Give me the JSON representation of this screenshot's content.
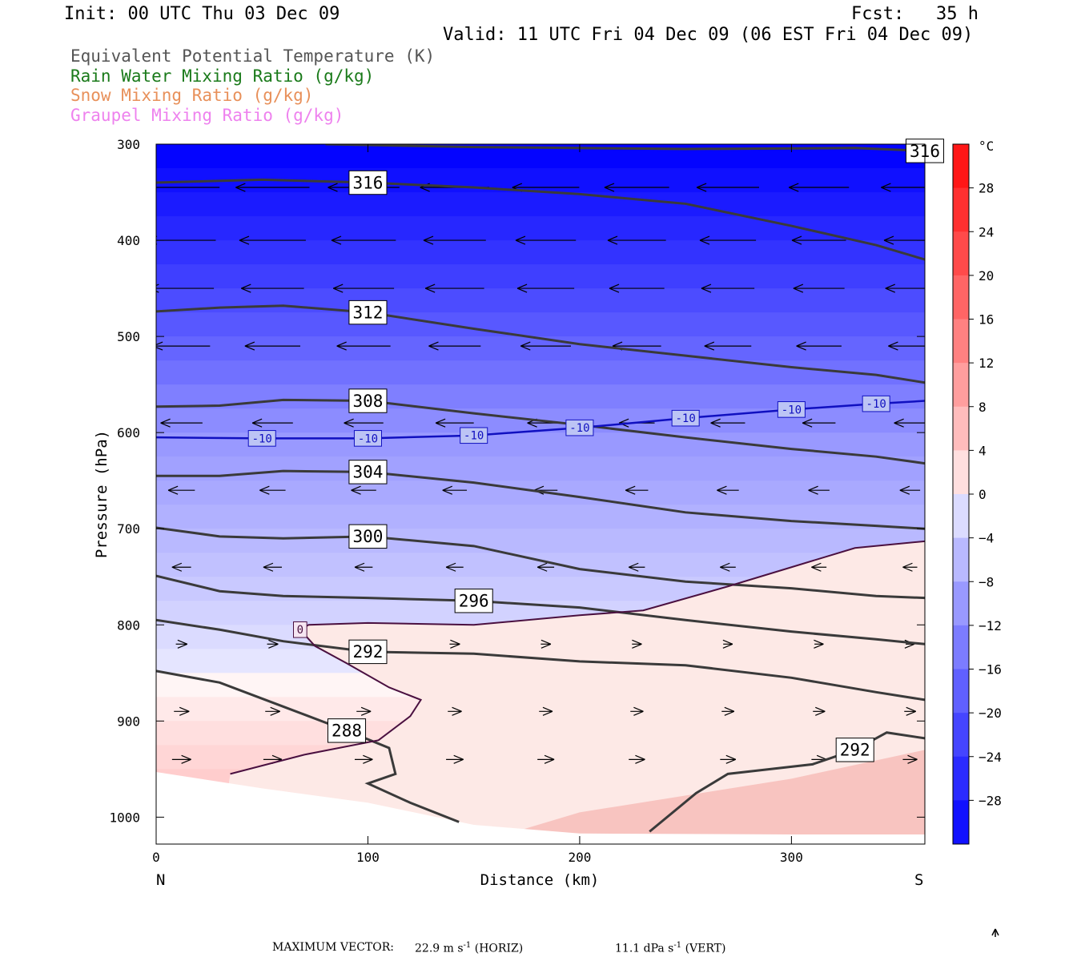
{
  "header": {
    "init": "Init: 00 UTC Thu 03 Dec 09",
    "fcst": "Fcst:   35 h",
    "valid": "Valid: 11 UTC Fri 04 Dec 09 (06 EST Fri 04 Dec 09)"
  },
  "legend": [
    {
      "text": "Equivalent Potential Temperature (K)",
      "color": "#555555"
    },
    {
      "text": "Rain Water Mixing Ratio (g/kg)",
      "color": "#1a7a1a"
    },
    {
      "text": "Snow Mixing Ratio (g/kg)",
      "color": "#e8905a"
    },
    {
      "text": "Graupel Mixing Ratio (g/kg)",
      "color": "#ee82ee"
    }
  ],
  "chart_data": {
    "type": "heatmap",
    "xlabel": "Distance (km)",
    "ylabel": "Pressure (hPa)",
    "xlim": [
      0,
      363
    ],
    "ylim": [
      1028,
      300
    ],
    "y_log": false,
    "x_ticks": [
      0,
      100,
      200,
      300
    ],
    "y_ticks": [
      300,
      400,
      500,
      600,
      700,
      800,
      900,
      1000
    ],
    "x_end_labels": {
      "left": "N",
      "right": "S"
    },
    "colorbar": {
      "unit": "°C",
      "ticks": [
        28,
        24,
        20,
        16,
        12,
        8,
        4,
        0,
        -4,
        -8,
        -12,
        -16,
        -20,
        -24,
        -28
      ],
      "range": [
        -32,
        32
      ]
    },
    "theta_e_contours": [
      {
        "label": "316",
        "points": [
          [
            0,
            340
          ],
          [
            50,
            337
          ],
          [
            100,
            340
          ],
          [
            150,
            345
          ],
          [
            200,
            352
          ],
          [
            250,
            362
          ],
          [
            300,
            385
          ],
          [
            340,
            405
          ],
          [
            363,
            420
          ]
        ]
      },
      {
        "label": "316",
        "points": [
          [
            80,
            300
          ],
          [
            150,
            303
          ],
          [
            250,
            305
          ],
          [
            330,
            304
          ],
          [
            363,
            307
          ]
        ]
      },
      {
        "label": "312",
        "points": [
          [
            0,
            474
          ],
          [
            30,
            470
          ],
          [
            60,
            468
          ],
          [
            100,
            475
          ],
          [
            150,
            492
          ],
          [
            200,
            508
          ],
          [
            250,
            520
          ],
          [
            300,
            532
          ],
          [
            340,
            540
          ],
          [
            363,
            548
          ]
        ]
      },
      {
        "label": "308",
        "points": [
          [
            0,
            573
          ],
          [
            30,
            572
          ],
          [
            60,
            566
          ],
          [
            100,
            567
          ],
          [
            150,
            580
          ],
          [
            200,
            592
          ],
          [
            250,
            605
          ],
          [
            300,
            617
          ],
          [
            340,
            625
          ],
          [
            363,
            632
          ]
        ]
      },
      {
        "label": "304",
        "points": [
          [
            0,
            645
          ],
          [
            30,
            645
          ],
          [
            60,
            640
          ],
          [
            100,
            641
          ],
          [
            150,
            652
          ],
          [
            200,
            667
          ],
          [
            250,
            683
          ],
          [
            300,
            692
          ],
          [
            340,
            697
          ],
          [
            363,
            700
          ]
        ]
      },
      {
        "label": "300",
        "points": [
          [
            0,
            699
          ],
          [
            30,
            708
          ],
          [
            60,
            710
          ],
          [
            100,
            708
          ],
          [
            150,
            718
          ],
          [
            200,
            742
          ],
          [
            250,
            755
          ],
          [
            300,
            762
          ],
          [
            340,
            770
          ],
          [
            363,
            772
          ]
        ]
      },
      {
        "label": "296",
        "points": [
          [
            0,
            749
          ],
          [
            30,
            765
          ],
          [
            60,
            770
          ],
          [
            100,
            772
          ],
          [
            150,
            775
          ],
          [
            200,
            782
          ],
          [
            250,
            795
          ],
          [
            300,
            807
          ],
          [
            340,
            815
          ],
          [
            363,
            820
          ]
        ]
      },
      {
        "label": "292",
        "points": [
          [
            0,
            795
          ],
          [
            30,
            805
          ],
          [
            60,
            817
          ],
          [
            100,
            828
          ],
          [
            150,
            830
          ],
          [
            200,
            838
          ],
          [
            250,
            842
          ],
          [
            300,
            855
          ],
          [
            340,
            870
          ],
          [
            363,
            878
          ]
        ]
      },
      {
        "label": "288",
        "points": [
          [
            0,
            848
          ],
          [
            30,
            860
          ],
          [
            60,
            885
          ],
          [
            90,
            910
          ],
          [
            110,
            928
          ],
          [
            113,
            955
          ],
          [
            100,
            965
          ],
          [
            120,
            985
          ],
          [
            143,
            1005
          ]
        ]
      },
      {
        "label": "292",
        "points": [
          [
            233,
            1015
          ],
          [
            255,
            975
          ],
          [
            270,
            955
          ],
          [
            290,
            950
          ],
          [
            310,
            945
          ],
          [
            330,
            930
          ],
          [
            345,
            912
          ],
          [
            363,
            918
          ]
        ]
      }
    ],
    "isotherms": [
      {
        "label": "-10",
        "color": "#1010c0",
        "points": [
          [
            0,
            605
          ],
          [
            50,
            606
          ],
          [
            100,
            606
          ],
          [
            150,
            603
          ],
          [
            200,
            595
          ],
          [
            250,
            585
          ],
          [
            300,
            576
          ],
          [
            340,
            570
          ],
          [
            363,
            567
          ]
        ]
      },
      {
        "label": "0",
        "color": "#4a1040",
        "points": [
          [
            35,
            955
          ],
          [
            70,
            935
          ],
          [
            105,
            920
          ],
          [
            120,
            895
          ],
          [
            125,
            878
          ],
          [
            110,
            865
          ],
          [
            90,
            840
          ],
          [
            75,
            822
          ],
          [
            68,
            805
          ],
          [
            72,
            800
          ],
          [
            100,
            798
          ],
          [
            150,
            800
          ],
          [
            200,
            790
          ],
          [
            230,
            785
          ],
          [
            270,
            760
          ],
          [
            300,
            740
          ],
          [
            330,
            720
          ],
          [
            363,
            713
          ]
        ]
      }
    ],
    "footer": {
      "max_vector": "MAXIMUM VECTOR:",
      "horiz": "22.9 m s",
      "horiz_unit": "(HORIZ)",
      "vert": "11.1 dPa s",
      "vert_unit": "(VERT)",
      "exponent": "-1"
    }
  }
}
